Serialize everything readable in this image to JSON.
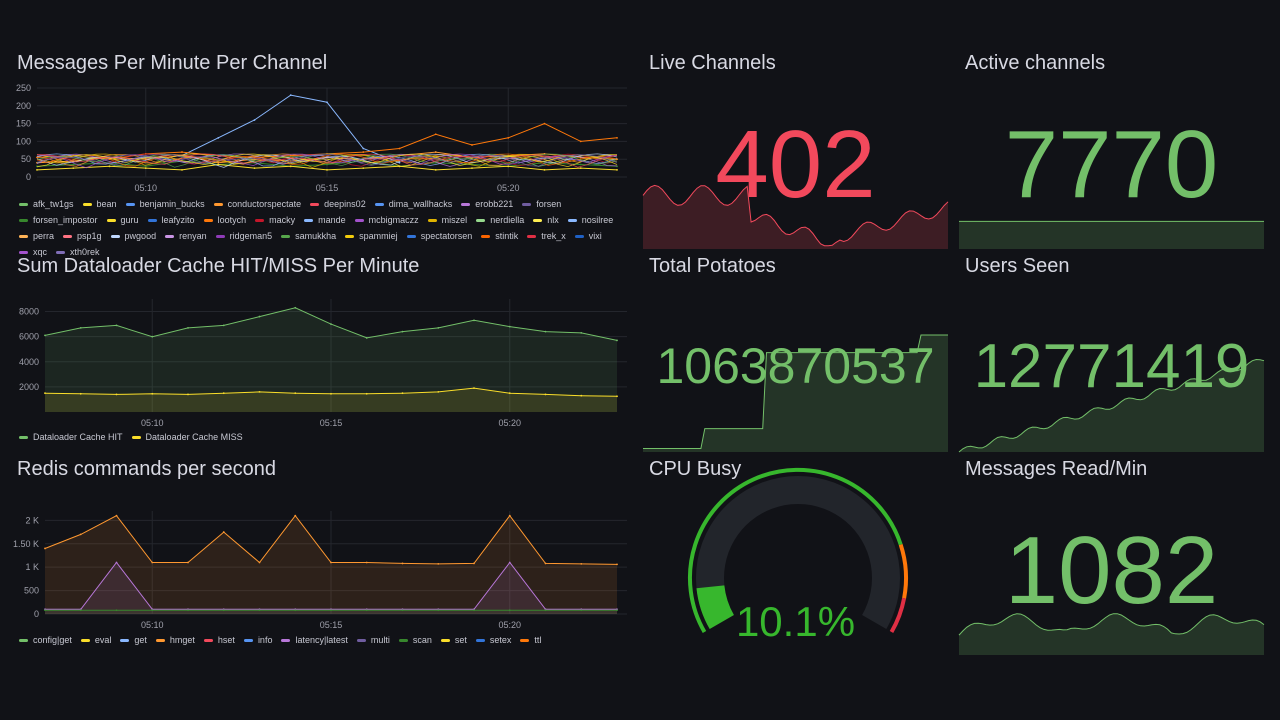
{
  "colors": {
    "green": "#73bf69",
    "red": "#f2495c",
    "bg": "#111217",
    "grid": "#24262d",
    "yellow": "#fade2a"
  },
  "messages_panel": {
    "title": "Messages Per Minute Per Channel",
    "y_ticks": [
      "250",
      "200",
      "150",
      "100",
      "50",
      "0"
    ],
    "x_ticks": [
      "05:10",
      "05:15",
      "05:20"
    ],
    "legend": [
      {
        "name": "afk_tw1gs",
        "color": "#73bf69"
      },
      {
        "name": "bean",
        "color": "#fade2a"
      },
      {
        "name": "benjamin_bucks",
        "color": "#5794f2"
      },
      {
        "name": "conductorspectate",
        "color": "#ff9830"
      },
      {
        "name": "deepins02",
        "color": "#f2495c"
      },
      {
        "name": "dima_wallhacks",
        "color": "#5794f2"
      },
      {
        "name": "erobb221",
        "color": "#b877d9"
      },
      {
        "name": "forsen",
        "color": "#705da0"
      },
      {
        "name": "forsen_impostor",
        "color": "#37872d"
      },
      {
        "name": "guru",
        "color": "#fade2a"
      },
      {
        "name": "leafyzito",
        "color": "#3274d9"
      },
      {
        "name": "lootych",
        "color": "#ff780a"
      },
      {
        "name": "macky",
        "color": "#c4162a"
      },
      {
        "name": "mande",
        "color": "#8ab8ff"
      },
      {
        "name": "mcbigmaczz",
        "color": "#a352cc"
      },
      {
        "name": "miszel",
        "color": "#e0b400"
      },
      {
        "name": "nerdiella",
        "color": "#96d98d"
      },
      {
        "name": "nlx",
        "color": "#ffee52"
      },
      {
        "name": "nosilree",
        "color": "#8ab8ff"
      },
      {
        "name": "perra",
        "color": "#ffb357"
      },
      {
        "name": "psp1g",
        "color": "#ff7383"
      },
      {
        "name": "pwgood",
        "color": "#c0d8ff"
      },
      {
        "name": "renyan",
        "color": "#ca95e5"
      },
      {
        "name": "ridgeman5",
        "color": "#8f3bb8"
      },
      {
        "name": "samukkha",
        "color": "#56a64b"
      },
      {
        "name": "spammiej",
        "color": "#f2cc0c"
      },
      {
        "name": "spectatorsen",
        "color": "#3274d9"
      },
      {
        "name": "stintik",
        "color": "#fa6400"
      },
      {
        "name": "trek_x",
        "color": "#e02f44"
      },
      {
        "name": "vixi",
        "color": "#1f60c4"
      },
      {
        "name": "xqc",
        "color": "#a352cc"
      },
      {
        "name": "xth0rek",
        "color": "#806eb7"
      }
    ]
  },
  "dataloader_panel": {
    "title": "Sum Dataloader Cache HIT/MISS Per Minute",
    "y_ticks": [
      "8000",
      "6000",
      "4000",
      "2000"
    ],
    "x_ticks": [
      "05:10",
      "05:15",
      "05:20"
    ],
    "legend": [
      {
        "name": "Dataloader Cache HIT",
        "color": "#73bf69"
      },
      {
        "name": "Dataloader Cache MISS",
        "color": "#fade2a"
      }
    ]
  },
  "redis_panel": {
    "title": "Redis commands per second",
    "y_ticks": [
      "2 K",
      "1.50 K",
      "1 K",
      "500",
      "0"
    ],
    "x_ticks": [
      "05:10",
      "05:15",
      "05:20"
    ],
    "legend": [
      {
        "name": "config|get",
        "color": "#73bf69"
      },
      {
        "name": "eval",
        "color": "#fade2a"
      },
      {
        "name": "get",
        "color": "#8ab8ff"
      },
      {
        "name": "hmget",
        "color": "#ff9830"
      },
      {
        "name": "hset",
        "color": "#f2495c"
      },
      {
        "name": "info",
        "color": "#5794f2"
      },
      {
        "name": "latency|latest",
        "color": "#b877d9"
      },
      {
        "name": "multi",
        "color": "#705da0"
      },
      {
        "name": "scan",
        "color": "#37872d"
      },
      {
        "name": "set",
        "color": "#fade2a"
      },
      {
        "name": "setex",
        "color": "#3274d9"
      },
      {
        "name": "ttl",
        "color": "#ff780a"
      }
    ]
  },
  "stats": {
    "live_channels": {
      "title": "Live Channels",
      "value": "402",
      "color": "#f2495c"
    },
    "active_channels": {
      "title": "Active channels",
      "value": "7770",
      "color": "#73bf69"
    },
    "total_potatoes": {
      "title": "Total Potatoes",
      "value": "1063870537",
      "color": "#73bf69"
    },
    "users_seen": {
      "title": "Users Seen",
      "value": "12771419",
      "color": "#73bf69"
    },
    "cpu_busy": {
      "title": "CPU Busy",
      "value": "10.1%",
      "percent": 10.1,
      "color": "#37b72d"
    },
    "messages_read": {
      "title": "Messages Read/Min",
      "value": "1082",
      "color": "#73bf69"
    }
  },
  "chart_data": [
    {
      "type": "line",
      "title": "Messages Per Minute Per Channel",
      "ylim": [
        0,
        250
      ],
      "x": [
        "05:07",
        "05:08",
        "05:09",
        "05:10",
        "05:11",
        "05:12",
        "05:13",
        "05:14",
        "05:15",
        "05:16",
        "05:17",
        "05:18",
        "05:19",
        "05:20",
        "05:21",
        "05:22",
        "05:23"
      ],
      "series": [
        {
          "name": "mande",
          "values": [
            null,
            null,
            null,
            null,
            60,
            110,
            160,
            230,
            210,
            80,
            40,
            null,
            null,
            null,
            null,
            null,
            null
          ]
        },
        {
          "name": "lootych",
          "values": [
            55,
            60,
            50,
            65,
            70,
            60,
            55,
            60,
            65,
            70,
            80,
            120,
            90,
            110,
            150,
            100,
            110
          ]
        },
        {
          "name": "conductorspectate",
          "values": [
            40,
            45,
            55,
            50,
            60,
            40,
            50,
            45,
            55,
            50,
            60,
            70,
            55,
            60,
            65,
            55,
            50
          ]
        },
        {
          "name": "forsen_impostor",
          "values": [
            30,
            35,
            40,
            30,
            45,
            35,
            40,
            30,
            35,
            45,
            30,
            40,
            35,
            30,
            40,
            35,
            30
          ]
        },
        {
          "name": "bean",
          "values": [
            20,
            25,
            30,
            25,
            20,
            35,
            25,
            30,
            20,
            25,
            30,
            20,
            25,
            30,
            20,
            25,
            20
          ]
        }
      ]
    },
    {
      "type": "line",
      "title": "Sum Dataloader Cache HIT/MISS Per Minute",
      "ylim": [
        0,
        9000
      ],
      "x": [
        "05:07",
        "05:08",
        "05:09",
        "05:10",
        "05:11",
        "05:12",
        "05:13",
        "05:14",
        "05:15",
        "05:16",
        "05:17",
        "05:18",
        "05:19",
        "05:20",
        "05:21",
        "05:22",
        "05:23"
      ],
      "series": [
        {
          "name": "Dataloader Cache HIT",
          "values": [
            6100,
            6700,
            6900,
            6000,
            6700,
            6900,
            7600,
            8300,
            7000,
            5900,
            6400,
            6700,
            7300,
            6800,
            6400,
            6300,
            5700
          ]
        },
        {
          "name": "Dataloader Cache MISS",
          "values": [
            1500,
            1450,
            1400,
            1450,
            1400,
            1500,
            1600,
            1500,
            1450,
            1450,
            1500,
            1600,
            1900,
            1500,
            1400,
            1300,
            1250
          ]
        }
      ]
    },
    {
      "type": "line",
      "title": "Redis commands per second",
      "ylim": [
        0,
        2200
      ],
      "x": [
        "05:07",
        "05:08",
        "05:09",
        "05:10",
        "05:11",
        "05:12",
        "05:13",
        "05:14",
        "05:15",
        "05:16",
        "05:17",
        "05:18",
        "05:19",
        "05:20",
        "05:21",
        "05:22",
        "05:23"
      ],
      "series": [
        {
          "name": "hmget",
          "values": [
            1400,
            1700,
            2100,
            1100,
            1100,
            1750,
            1100,
            2100,
            1100,
            1100,
            1080,
            1070,
            1080,
            2100,
            1080,
            1070,
            1060
          ]
        },
        {
          "name": "latency|latest",
          "values": [
            100,
            100,
            1100,
            100,
            100,
            100,
            100,
            100,
            100,
            100,
            100,
            100,
            100,
            1100,
            100,
            100,
            100
          ]
        },
        {
          "name": "scan",
          "values": [
            80,
            80,
            80,
            80,
            80,
            80,
            80,
            80,
            80,
            80,
            80,
            80,
            80,
            80,
            80,
            80,
            80
          ]
        }
      ]
    }
  ]
}
